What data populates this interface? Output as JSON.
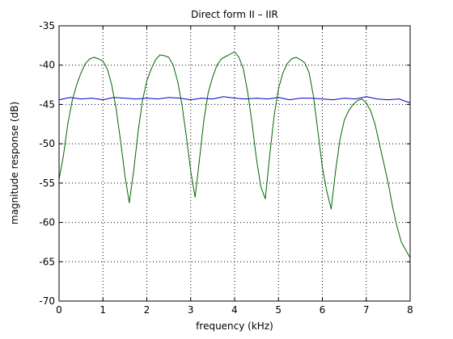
{
  "chart_data": {
    "type": "line",
    "title": "Direct form II – IIR",
    "xlabel": "frequency (kHz)",
    "ylabel": "magnitude response (dB)",
    "xlim": [
      0,
      8
    ],
    "ylim": [
      -70,
      -35
    ],
    "xticks": [
      "0",
      "1",
      "2",
      "3",
      "4",
      "5",
      "6",
      "7",
      "8"
    ],
    "yticks": [
      "-35",
      "-40",
      "-45",
      "-50",
      "-55",
      "-60",
      "-65",
      "-70"
    ],
    "grid": true,
    "colors": {
      "blue": "#0000cc",
      "green": "#006600"
    },
    "series": [
      {
        "color": "#0000cc",
        "x": [
          0,
          0.25,
          0.5,
          0.75,
          1,
          1.25,
          1.5,
          1.75,
          2,
          2.25,
          2.5,
          2.75,
          3,
          3.25,
          3.5,
          3.75,
          4,
          4.25,
          4.5,
          4.75,
          5,
          5.25,
          5.5,
          5.75,
          6,
          6.25,
          6.5,
          6.75,
          7,
          7.25,
          7.5,
          7.75,
          8
        ],
        "y": [
          -44.4,
          -44.1,
          -44.3,
          -44.2,
          -44.4,
          -44.1,
          -44.2,
          -44.3,
          -44.2,
          -44.3,
          -44.1,
          -44.2,
          -44.4,
          -44.2,
          -44.3,
          -44.0,
          -44.2,
          -44.3,
          -44.2,
          -44.3,
          -44.1,
          -44.4,
          -44.2,
          -44.2,
          -44.3,
          -44.4,
          -44.2,
          -44.3,
          -44.0,
          -44.3,
          -44.4,
          -44.3,
          -44.8
        ]
      },
      {
        "color": "#006600",
        "x": [
          0,
          0.1,
          0.2,
          0.3,
          0.4,
          0.5,
          0.6,
          0.7,
          0.8,
          0.9,
          1.0,
          1.1,
          1.2,
          1.3,
          1.4,
          1.5,
          1.6,
          1.7,
          1.8,
          1.9,
          2.0,
          2.1,
          2.2,
          2.3,
          2.4,
          2.5,
          2.6,
          2.7,
          2.8,
          2.9,
          3.0,
          3.1,
          3.2,
          3.3,
          3.4,
          3.5,
          3.6,
          3.7,
          3.8,
          3.9,
          4.0,
          4.1,
          4.2,
          4.3,
          4.4,
          4.5,
          4.6,
          4.7,
          4.8,
          4.9,
          5.0,
          5.1,
          5.2,
          5.3,
          5.4,
          5.5,
          5.6,
          5.7,
          5.8,
          5.9,
          6.0,
          6.1,
          6.2,
          6.3,
          6.4,
          6.5,
          6.6,
          6.7,
          6.8,
          6.9,
          7.0,
          7.1,
          7.2,
          7.3,
          7.4,
          7.5,
          7.6,
          7.7,
          7.8,
          7.9,
          8.0
        ],
        "y": [
          -54.5,
          -51.5,
          -47.5,
          -44.5,
          -42.5,
          -41.0,
          -39.8,
          -39.2,
          -39.0,
          -39.2,
          -39.5,
          -40.5,
          -42.5,
          -45.5,
          -49.5,
          -54.0,
          -57.5,
          -53.5,
          -48.5,
          -44.5,
          -42.0,
          -40.5,
          -39.3,
          -38.7,
          -38.8,
          -39.0,
          -40.0,
          -42.0,
          -45.0,
          -49.0,
          -53.5,
          -56.8,
          -52.0,
          -47.0,
          -43.5,
          -41.5,
          -40.0,
          -39.2,
          -38.9,
          -38.6,
          -38.3,
          -39.0,
          -40.5,
          -43.5,
          -47.5,
          -52.0,
          -55.5,
          -57.0,
          -51.5,
          -46.5,
          -43.0,
          -41.0,
          -39.8,
          -39.2,
          -39.0,
          -39.3,
          -39.7,
          -41.0,
          -44.0,
          -48.5,
          -53.0,
          -56.0,
          -58.3,
          -53.5,
          -49.5,
          -47.0,
          -45.8,
          -45.0,
          -44.5,
          -44.3,
          -44.8,
          -45.8,
          -47.5,
          -50.0,
          -52.5,
          -55.0,
          -58.0,
          -60.5,
          -62.5,
          -63.5,
          -64.5
        ]
      }
    ]
  }
}
